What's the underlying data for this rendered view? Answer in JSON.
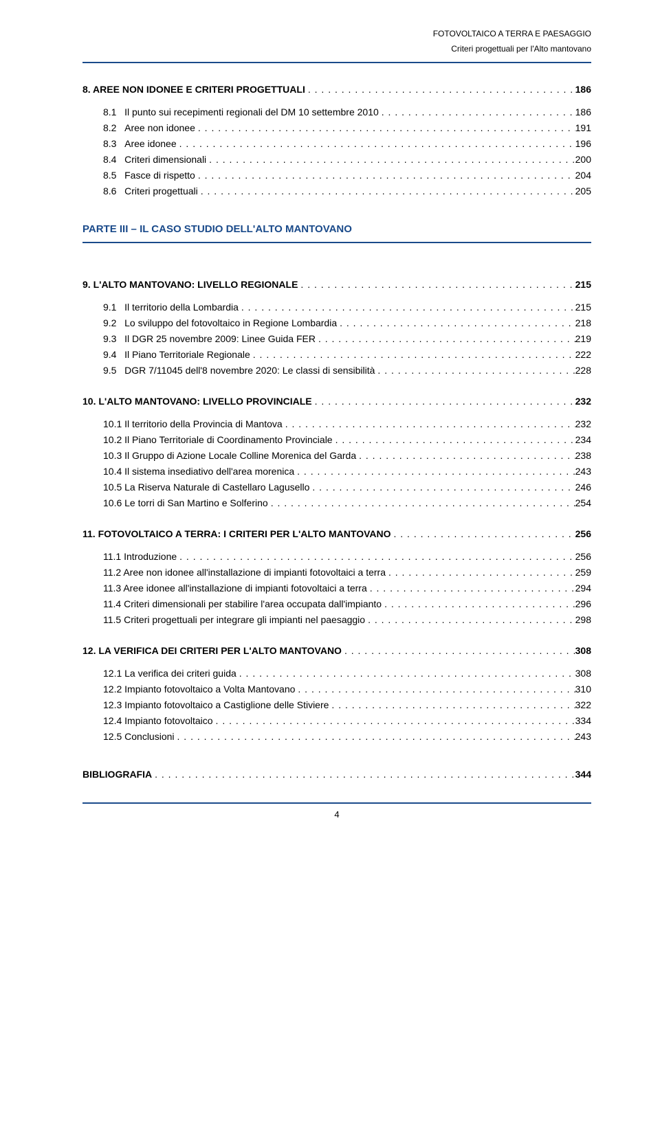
{
  "header": {
    "line1": "FOTOVOLTAICO A TERRA E PAESAGGIO",
    "line2": "Criteri progettuali per l'Alto mantovano"
  },
  "part_heading": "PARTE III – IL CASO STUDIO DELL'ALTO MANTOVANO",
  "footer_page": "4",
  "colors": {
    "accent": "#1a4a8a"
  },
  "toc": [
    {
      "type": "line",
      "bold": true,
      "indent": 0,
      "label": "8. AREE NON IDONEE E CRITERI PROGETTUALI",
      "page": "186"
    },
    {
      "type": "gap",
      "size": "s"
    },
    {
      "type": "line",
      "bold": false,
      "indent": 1,
      "label": "8.1",
      "text": "Il punto sui recepimenti regionali del DM 10 settembre 2010",
      "page": "186"
    },
    {
      "type": "line",
      "bold": false,
      "indent": 1,
      "label": "8.2",
      "text": "Aree non idonee",
      "page": "191"
    },
    {
      "type": "line",
      "bold": false,
      "indent": 1,
      "label": "8.3",
      "text": "Aree idonee",
      "page": "196"
    },
    {
      "type": "line",
      "bold": false,
      "indent": 1,
      "label": "8.4",
      "text": "Criteri dimensionali",
      "page": "200"
    },
    {
      "type": "line",
      "bold": false,
      "indent": 1,
      "label": "8.5",
      "text": "Fasce di rispetto",
      "page": "204"
    },
    {
      "type": "line",
      "bold": false,
      "indent": 1,
      "label": "8.6",
      "text": "Criteri progettuali",
      "page": "205"
    },
    {
      "type": "gap",
      "size": "l"
    },
    {
      "type": "part"
    },
    {
      "type": "gap",
      "size": "m"
    },
    {
      "type": "line",
      "bold": true,
      "indent": 0,
      "label": "9. L'ALTO MANTOVANO: LIVELLO REGIONALE",
      "page": "215"
    },
    {
      "type": "gap",
      "size": "s"
    },
    {
      "type": "line",
      "bold": false,
      "indent": 1,
      "label": "9.1",
      "text": "Il territorio della Lombardia",
      "page": "215"
    },
    {
      "type": "line",
      "bold": false,
      "indent": 1,
      "label": "9.2",
      "text": "Lo sviluppo del fotovoltaico in Regione Lombardia",
      "page": "218"
    },
    {
      "type": "line",
      "bold": false,
      "indent": 1,
      "label": "9.3",
      "text": "Il DGR 25 novembre 2009: Linee Guida FER",
      "page": "219"
    },
    {
      "type": "line",
      "bold": false,
      "indent": 1,
      "label": "9.4",
      "text": "Il Piano Territoriale Regionale",
      "page": "222"
    },
    {
      "type": "line",
      "bold": false,
      "indent": 1,
      "label": "9.5",
      "text": "DGR 7/11045 dell'8 novembre 2020: Le classi di sensibilità",
      "page": "228"
    },
    {
      "type": "gap",
      "size": "m"
    },
    {
      "type": "line",
      "bold": true,
      "indent": 0,
      "label": "10. L'ALTO MANTOVANO: LIVELLO PROVINCIALE",
      "page": "232"
    },
    {
      "type": "gap",
      "size": "s"
    },
    {
      "type": "line",
      "bold": false,
      "indent": 1,
      "label": "10.1 Il territorio della Provincia di Mantova",
      "page": "232"
    },
    {
      "type": "line",
      "bold": false,
      "indent": 1,
      "label": "10.2 Il Piano Territoriale di Coordinamento Provinciale",
      "page": "234"
    },
    {
      "type": "line",
      "bold": false,
      "indent": 1,
      "label": "10.3 Il Gruppo di Azione Locale Colline Morenica del Garda",
      "page": "238"
    },
    {
      "type": "line",
      "bold": false,
      "indent": 1,
      "label": "10.4 Il sistema insediativo dell'area morenica",
      "page": "243"
    },
    {
      "type": "line",
      "bold": false,
      "indent": 1,
      "label": "10.5 La Riserva Naturale di Castellaro Lagusello",
      "page": "246"
    },
    {
      "type": "line",
      "bold": false,
      "indent": 1,
      "label": "10.6 Le torri di San Martino e Solferino",
      "page": "254"
    },
    {
      "type": "gap",
      "size": "m"
    },
    {
      "type": "line",
      "bold": true,
      "indent": 0,
      "label": "11. FOTOVOLTAICO A TERRA: I CRITERI PER L'ALTO MANTOVANO",
      "page": "256"
    },
    {
      "type": "gap",
      "size": "s"
    },
    {
      "type": "line",
      "bold": false,
      "indent": 1,
      "label": "11.1 Introduzione",
      "page": "256"
    },
    {
      "type": "line",
      "bold": false,
      "indent": 1,
      "label": "11.2 Aree non idonee all'installazione di impianti fotovoltaici a terra",
      "page": "259"
    },
    {
      "type": "line",
      "bold": false,
      "indent": 1,
      "label": "11.3 Aree idonee all'installazione di impianti fotovoltaici a terra",
      "page": "294"
    },
    {
      "type": "line",
      "bold": false,
      "indent": 1,
      "label": "11.4 Criteri dimensionali per stabilire l'area occupata dall'impianto",
      "page": "296"
    },
    {
      "type": "line",
      "bold": false,
      "indent": 1,
      "label": "11.5 Criteri progettuali per integrare gli impianti nel paesaggio",
      "page": "298"
    },
    {
      "type": "gap",
      "size": "m"
    },
    {
      "type": "line",
      "bold": true,
      "indent": 0,
      "label": "12. LA VERIFICA DEI CRITERI PER L'ALTO MANTOVANO",
      "page": "308"
    },
    {
      "type": "gap",
      "size": "s"
    },
    {
      "type": "line",
      "bold": false,
      "indent": 1,
      "label": "12.1 La verifica dei criteri guida",
      "page": "308"
    },
    {
      "type": "line",
      "bold": false,
      "indent": 1,
      "label": "12.2 Impianto fotovoltaico a Volta Mantovano",
      "page": "310"
    },
    {
      "type": "line",
      "bold": false,
      "indent": 1,
      "label": "12.3 Impianto fotovoltaico a Castiglione delle Stiviere",
      "page": "322"
    },
    {
      "type": "line",
      "bold": false,
      "indent": 1,
      "label": "12.4 Impianto fotovoltaico",
      "page": "334"
    },
    {
      "type": "line",
      "bold": false,
      "indent": 1,
      "label": "12.5 Conclusioni",
      "page": "243"
    },
    {
      "type": "gap",
      "size": "l"
    },
    {
      "type": "line",
      "bold": true,
      "indent": 0,
      "label": "BIBLIOGRAFIA",
      "page": "344"
    }
  ]
}
